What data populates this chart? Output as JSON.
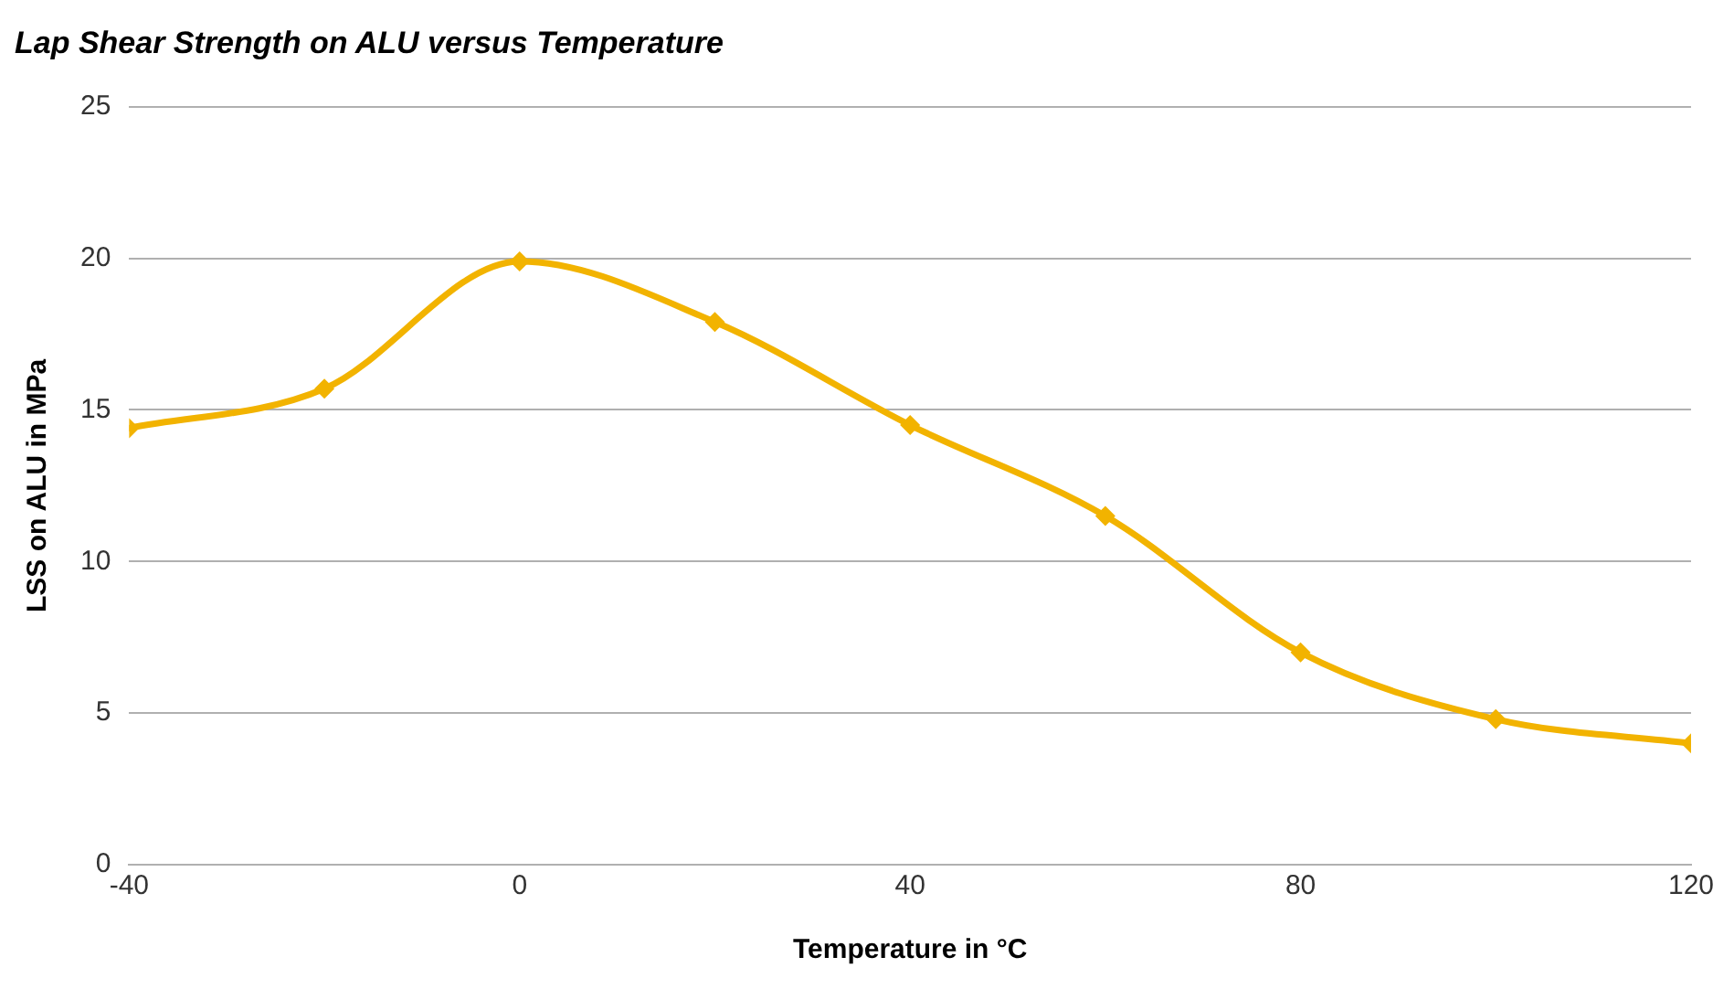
{
  "chart_data": {
    "type": "line",
    "title": "Lap Shear Strength on ALU versus Temperature",
    "xlabel": "Temperature in °C",
    "ylabel": "LSS on ALU in MPa",
    "x": [
      -40,
      -20,
      0,
      20,
      40,
      60,
      80,
      100,
      120
    ],
    "series": [
      {
        "color": "#f2b300",
        "values": [
          14.4,
          15.7,
          19.9,
          17.9,
          14.5,
          11.5,
          7.0,
          4.8,
          4.0
        ]
      }
    ],
    "xlim": [
      -40,
      120
    ],
    "xticks": [
      -40,
      0,
      40,
      80,
      120
    ],
    "ylim": [
      0,
      25
    ],
    "yticks": [
      0,
      5,
      10,
      15,
      20,
      25
    ],
    "grid": "y",
    "legend": false,
    "marker": "diamond",
    "line_style": "solid"
  }
}
